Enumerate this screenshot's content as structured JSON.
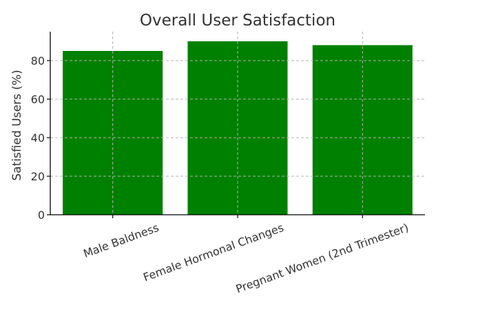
{
  "chart_data": {
    "type": "bar",
    "title": "Overall User Satisfaction",
    "xlabel": "",
    "ylabel": "Satisfied Users (%)",
    "categories": [
      "Male Baldness",
      "Female Hormonal Changes",
      "Pregnant Women (2nd Trimester)"
    ],
    "values": [
      85,
      90,
      88
    ],
    "ylim": [
      0,
      95
    ],
    "yticks": [
      0,
      20,
      40,
      60,
      80
    ],
    "grid": true,
    "bar_color": "#008000",
    "xtick_rotation_deg": -20
  }
}
